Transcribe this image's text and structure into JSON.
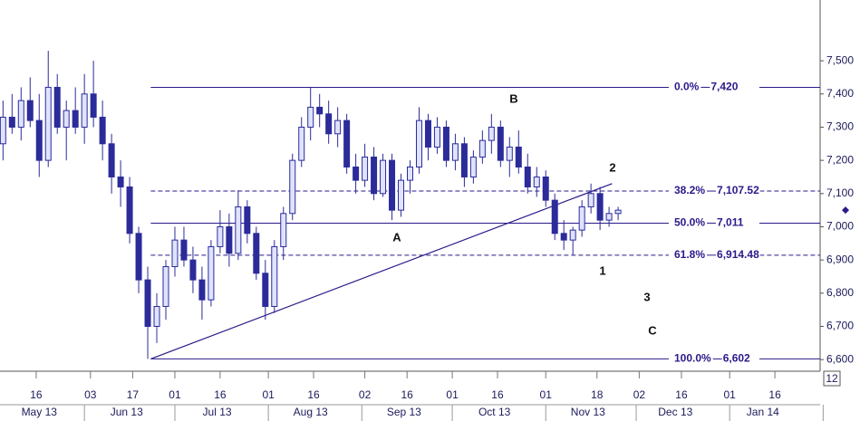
{
  "chart_data": {
    "type": "candlestick",
    "x": [
      125,
      128,
      131,
      134,
      137,
      140,
      143,
      146,
      149,
      152,
      155,
      158,
      161,
      164,
      167,
      170,
      173,
      176,
      179,
      182,
      185,
      188,
      191,
      194,
      197,
      200,
      203,
      206,
      209,
      212,
      215,
      218,
      221,
      224,
      227,
      230,
      233,
      236,
      239,
      242,
      245,
      248,
      251,
      254,
      257,
      260,
      263,
      266,
      269,
      272,
      275,
      278,
      281,
      284,
      287,
      290,
      293,
      296,
      299,
      302,
      305,
      308,
      311,
      314,
      317,
      320,
      323,
      326,
      329
    ],
    "open": [
      7250,
      7330,
      7300,
      7380,
      7320,
      7200,
      7420,
      7300,
      7350,
      7300,
      7400,
      7330,
      7250,
      7150,
      7120,
      6980,
      6840,
      6700,
      6760,
      6880,
      6960,
      6900,
      6840,
      6780,
      6940,
      7000,
      6920,
      7060,
      6980,
      6860,
      6760,
      6940,
      7040,
      7200,
      7300,
      7360,
      7340,
      7280,
      7320,
      7180,
      7140,
      7210,
      7100,
      7200,
      7050,
      7140,
      7180,
      7320,
      7240,
      7300,
      7200,
      7250,
      7150,
      7210,
      7260,
      7300,
      7200,
      7240,
      7180,
      7120,
      7150,
      7080,
      6980,
      6960,
      6990,
      7060,
      7100,
      7020,
      7040
    ],
    "high": [
      7380,
      7400,
      7420,
      7450,
      7400,
      7530,
      7460,
      7380,
      7420,
      7460,
      7500,
      7380,
      7280,
      7200,
      7150,
      7000,
      6880,
      6800,
      6900,
      7000,
      7000,
      6940,
      6880,
      6960,
      7050,
      7040,
      7110,
      7080,
      7000,
      6900,
      6960,
      7060,
      7220,
      7330,
      7420,
      7400,
      7380,
      7360,
      7340,
      7220,
      7250,
      7240,
      7220,
      7220,
      7160,
      7200,
      7360,
      7340,
      7330,
      7320,
      7280,
      7270,
      7230,
      7290,
      7340,
      7320,
      7270,
      7290,
      7220,
      7180,
      7170,
      7100,
      7020,
      7000,
      7080,
      7130,
      7120,
      7060,
      7060
    ],
    "low": [
      7200,
      7280,
      7260,
      7300,
      7150,
      7180,
      7280,
      7200,
      7280,
      7250,
      7300,
      7200,
      7100,
      7060,
      6950,
      6800,
      6602,
      6650,
      6720,
      6850,
      6880,
      6800,
      6720,
      6760,
      6920,
      6880,
      6900,
      6950,
      6840,
      6720,
      6740,
      6900,
      7020,
      7180,
      7260,
      7300,
      7250,
      7240,
      7160,
      7100,
      7120,
      7080,
      7090,
      7020,
      7030,
      7100,
      7160,
      7200,
      7220,
      7180,
      7170,
      7120,
      7130,
      7190,
      7220,
      7180,
      7150,
      7160,
      7100,
      7090,
      7060,
      6960,
      6930,
      6914,
      6970,
      7040,
      6990,
      7000,
      7020
    ],
    "close": [
      7330,
      7300,
      7380,
      7320,
      7200,
      7420,
      7300,
      7350,
      7300,
      7400,
      7330,
      7250,
      7150,
      7120,
      6980,
      6840,
      6700,
      6760,
      6880,
      6960,
      6900,
      6840,
      6780,
      6940,
      7000,
      6920,
      7060,
      6980,
      6860,
      6760,
      6940,
      7040,
      7200,
      7300,
      7360,
      7340,
      7280,
      7320,
      7180,
      7140,
      7210,
      7100,
      7200,
      7050,
      7140,
      7180,
      7320,
      7240,
      7300,
      7200,
      7250,
      7150,
      7210,
      7260,
      7300,
      7200,
      7240,
      7180,
      7120,
      7150,
      7080,
      6980,
      6960,
      6990,
      7060,
      7100,
      7020,
      7040,
      7050
    ],
    "color": "#2b2b9a",
    "xlim": [
      124,
      396
    ],
    "ylim": [
      6565,
      7683
    ],
    "yticks": [
      {
        "value": 6600,
        "label": "6,600"
      },
      {
        "value": 6700,
        "label": "6,700"
      },
      {
        "value": 6800,
        "label": "6,800"
      },
      {
        "value": 6900,
        "label": "6,900"
      },
      {
        "value": 7000,
        "label": "7,000"
      },
      {
        "value": 7100,
        "label": "7,100"
      },
      {
        "value": 7200,
        "label": "7,200"
      },
      {
        "value": 7300,
        "label": "7,300"
      },
      {
        "value": 7400,
        "label": "7,400"
      },
      {
        "value": 7500,
        "label": "7,500"
      }
    ],
    "xticks": [
      {
        "value": 136,
        "label": "16"
      },
      {
        "value": 154,
        "label": "03"
      },
      {
        "value": 168,
        "label": "17"
      },
      {
        "value": 182,
        "label": "01"
      },
      {
        "value": 197,
        "label": "16"
      },
      {
        "value": 213,
        "label": "01"
      },
      {
        "value": 228,
        "label": "16"
      },
      {
        "value": 245,
        "label": "02"
      },
      {
        "value": 259,
        "label": "16"
      },
      {
        "value": 274,
        "label": "01"
      },
      {
        "value": 289,
        "label": "16"
      },
      {
        "value": 305,
        "label": "01"
      },
      {
        "value": 322,
        "label": "18"
      },
      {
        "value": 336,
        "label": "02"
      },
      {
        "value": 350,
        "label": "16"
      },
      {
        "value": 366,
        "label": "01"
      },
      {
        "value": 381,
        "label": "16"
      }
    ],
    "month_labels": [
      {
        "value": 137,
        "label": "May 13"
      },
      {
        "value": 166,
        "label": "Jun 13"
      },
      {
        "value": 196,
        "label": "Jul 13"
      },
      {
        "value": 227,
        "label": "Aug 13"
      },
      {
        "value": 258,
        "label": "Sep 13"
      },
      {
        "value": 288,
        "label": "Oct 13"
      },
      {
        "value": 319,
        "label": "Nov 13"
      },
      {
        "value": 348,
        "label": "Dec 13"
      },
      {
        "value": 377,
        "label": "Jan 14"
      }
    ],
    "month_starts": [
      152,
      182,
      213,
      244,
      274,
      305,
      335,
      366,
      397
    ],
    "fib_levels": [
      {
        "pct": "0.0%",
        "value": 7420,
        "label": "7,420",
        "style": "solid"
      },
      {
        "pct": "38.2%",
        "value": 7107.52,
        "label": "7,107.52",
        "style": "dashed"
      },
      {
        "pct": "50.0%",
        "value": 7011,
        "label": "7,011",
        "style": "solid"
      },
      {
        "pct": "61.8%",
        "value": 6914.48,
        "label": "6,914.48",
        "style": "dashed"
      },
      {
        "pct": "100.0%",
        "value": 6602,
        "label": "6,602",
        "style": "solid"
      }
    ],
    "fib_start": 174,
    "trendline": {
      "x": [
        174,
        327
      ],
      "y": [
        6602,
        7130
      ]
    },
    "annotations": [
      "A",
      "B",
      "1",
      "2",
      "3",
      "C"
    ],
    "last_price": 7050,
    "corner_label": "12"
  }
}
